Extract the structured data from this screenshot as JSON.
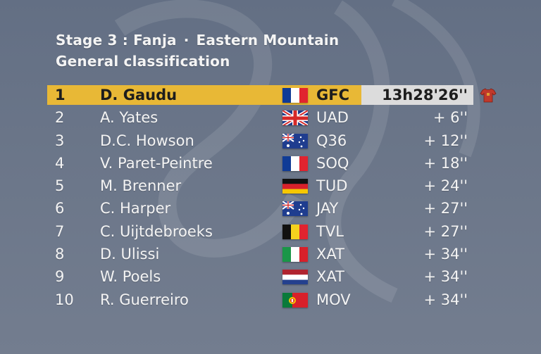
{
  "header": {
    "stage": "Stage 3 : Fanja",
    "separator": "·",
    "region": "Eastern Mountain",
    "subtitle": "General classification"
  },
  "rows": [
    {
      "pos": "1",
      "name": "D. Gaudu",
      "team": "GFC",
      "time": "13h28'26''",
      "flag": "france-flag"
    },
    {
      "pos": "2",
      "name": "A. Yates",
      "team": "UAD",
      "time": "+ 6''",
      "flag": "uk-flag"
    },
    {
      "pos": "3",
      "name": "D.C. Howson",
      "team": "Q36",
      "time": "+ 12''",
      "flag": "australia-flag"
    },
    {
      "pos": "4",
      "name": "V. Paret-Peintre",
      "team": "SOQ",
      "time": "+ 18''",
      "flag": "france-flag"
    },
    {
      "pos": "5",
      "name": "M. Brenner",
      "team": "TUD",
      "time": "+ 24''",
      "flag": "germany-flag"
    },
    {
      "pos": "6",
      "name": "C. Harper",
      "team": "JAY",
      "time": "+ 27''",
      "flag": "australia-flag"
    },
    {
      "pos": "7",
      "name": "C. Uijtdebroeks",
      "team": "TVL",
      "time": "+ 27''",
      "flag": "belgium-flag"
    },
    {
      "pos": "8",
      "name": "D. Ulissi",
      "team": "XAT",
      "time": "+ 34''",
      "flag": "italy-flag"
    },
    {
      "pos": "9",
      "name": "W. Poels",
      "team": "XAT",
      "time": "+ 34''",
      "flag": "netherlands-flag"
    },
    {
      "pos": "10",
      "name": "R. Guerreiro",
      "team": "MOV",
      "time": "+ 34''",
      "flag": "portugal-flag"
    }
  ],
  "leader_icon": "red-jersey-icon",
  "colors": {
    "background": "#6b7689",
    "leader_bar": "#e8b836",
    "time_box": "#dcdcdc",
    "jersey": "#c0392b"
  }
}
